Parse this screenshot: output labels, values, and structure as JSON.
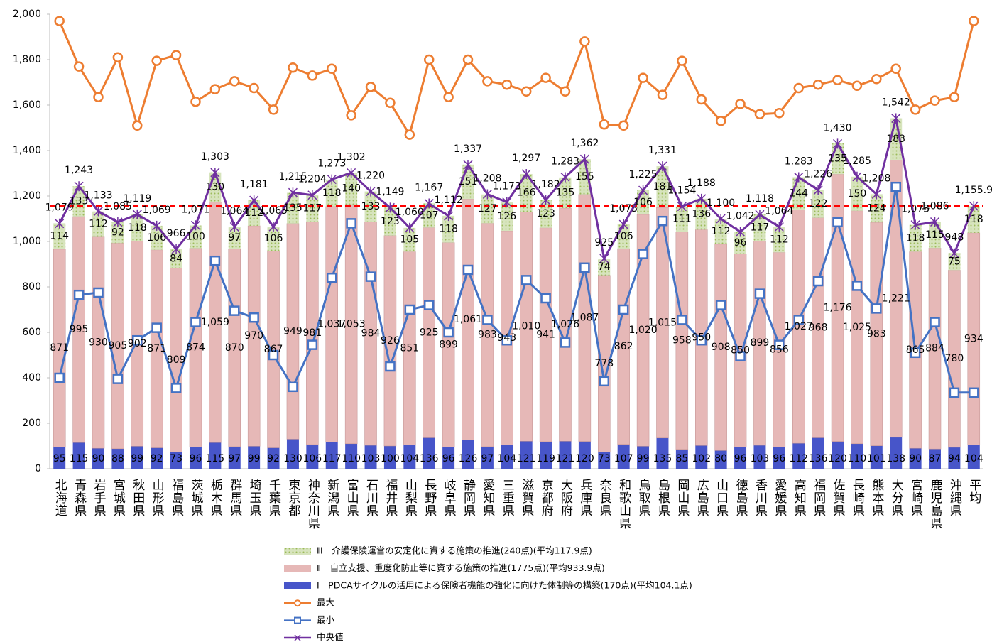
{
  "chart_data": {
    "type": "bar",
    "stacked": true,
    "categories": [
      "北海道",
      "青森県",
      "岩手県",
      "宮城県",
      "秋田県",
      "山形県",
      "福島県",
      "茨城県",
      "栃木県",
      "群馬県",
      "埼玉県",
      "千葉県",
      "東京都",
      "神奈川県",
      "新潟県",
      "富山県",
      "石川県",
      "福井県",
      "山梨県",
      "長野県",
      "岐阜県",
      "静岡県",
      "愛知県",
      "三重県",
      "滋賀県",
      "京都府",
      "大阪府",
      "兵庫県",
      "奈良県",
      "和歌山県",
      "鳥取県",
      "島根県",
      "岡山県",
      "広島県",
      "山口県",
      "徳島県",
      "香川県",
      "愛媛県",
      "高知県",
      "福岡県",
      "佐賀県",
      "長崎県",
      "熊本県",
      "大分県",
      "宮崎県",
      "鹿児島県",
      "沖縄県",
      "平均"
    ],
    "series": [
      {
        "name": "Ⅰ　PDCAサイクルの活用による保険者機能の強化に向けた体制等の構築(170点)(平均104.1点)",
        "type": "bar",
        "color": "#4755c9",
        "values": [
          95,
          115,
          90,
          88,
          99,
          92,
          73,
          96,
          115,
          97,
          99,
          92,
          130,
          106,
          117,
          110,
          103,
          100,
          104,
          136,
          96,
          126,
          97,
          104,
          121,
          119,
          121,
          120,
          73,
          107,
          99,
          135,
          85,
          102,
          80,
          96,
          103,
          96,
          112,
          136,
          120,
          110,
          101,
          138,
          90,
          87,
          94,
          104
        ]
      },
      {
        "name": "Ⅱ　自立支援、重度化防止等に資する施策の推進(1775点)(平均933.9点)",
        "type": "bar",
        "color": "#e6b8b7",
        "values": [
          871,
          995,
          930,
          905,
          902,
          871,
          809,
          874,
          1059,
          870,
          970,
          867,
          949,
          981,
          1037,
          1053,
          984,
          926,
          851,
          925,
          899,
          1061,
          983,
          943,
          1010,
          941,
          1026,
          1087,
          778,
          862,
          1020,
          1015,
          958,
          950,
          908,
          850,
          899,
          856,
          1027,
          968,
          1176,
          1025,
          983,
          1221,
          865,
          884,
          780,
          934
        ],
        "value_labels": [
          "871",
          "995",
          "930",
          "905",
          "902",
          "871",
          "809",
          "874",
          "1,059",
          "870",
          "970",
          "867",
          "949",
          "981",
          "1,037",
          "1,053",
          "984",
          "926",
          "851",
          "925",
          "899",
          "1,061",
          "983",
          "943",
          "1,010",
          "941",
          "1,026",
          "1,087",
          "778",
          "862",
          "1,020",
          "1,015",
          "958",
          "950",
          "908",
          "850",
          "899",
          "856",
          "1,027",
          "968",
          "1,176",
          "1,025",
          "983",
          "1,221",
          "865",
          "884",
          "780",
          "934"
        ]
      },
      {
        "name": "Ⅲ　介護保険運営の安定化に資する施策の推進(240点)(平均117.9点)",
        "type": "bar",
        "color": "#d7e4bd",
        "pattern": "dots",
        "values": [
          114,
          133,
          112,
          92,
          118,
          106,
          84,
          100,
          130,
          97,
          112,
          106,
          135,
          117,
          118,
          140,
          133,
          123,
          105,
          107,
          118,
          151,
          127,
          126,
          166,
          123,
          135,
          155,
          74,
          106,
          106,
          181,
          111,
          136,
          112,
          96,
          117,
          112,
          144,
          122,
          135,
          150,
          124,
          183,
          118,
          115,
          75,
          118
        ]
      },
      {
        "name": "最大",
        "type": "line",
        "color": "#ed7d31",
        "marker": "circle",
        "values": [
          1970,
          1770,
          1635,
          1810,
          1510,
          1795,
          1820,
          1615,
          1670,
          1705,
          1675,
          1580,
          1765,
          1730,
          1760,
          1555,
          1680,
          1610,
          1470,
          1800,
          1635,
          1800,
          1705,
          1690,
          1660,
          1720,
          1660,
          1880,
          1515,
          1510,
          1720,
          1645,
          1795,
          1625,
          1530,
          1605,
          1560,
          1565,
          1675,
          1690,
          1710,
          1685,
          1715,
          1760,
          1580,
          1620,
          1635,
          1970
        ]
      },
      {
        "name": "最小",
        "type": "line",
        "color": "#4472c4",
        "marker": "square",
        "values": [
          400,
          765,
          775,
          395,
          565,
          620,
          355,
          645,
          915,
          695,
          665,
          500,
          360,
          545,
          840,
          1080,
          845,
          450,
          700,
          720,
          600,
          875,
          655,
          565,
          830,
          750,
          555,
          885,
          385,
          700,
          945,
          1090,
          655,
          565,
          720,
          495,
          770,
          545,
          655,
          825,
          1085,
          805,
          705,
          1240,
          510,
          645,
          335,
          335
        ]
      },
      {
        "name": "中央値",
        "type": "line",
        "color": "#7030a0",
        "marker": "x",
        "values": [
          1079,
          1243,
          1133,
          1085,
          1119,
          1069,
          966,
          1071,
          1303,
          1064,
          1181,
          1065,
          1215,
          1204,
          1273,
          1302,
          1220,
          1149,
          1060,
          1167,
          1112,
          1337,
          1208,
          1173,
          1297,
          1182,
          1283,
          1362,
          925,
          1075,
          1225,
          1331,
          1154,
          1188,
          1100,
          1042,
          1118,
          1064,
          1283,
          1226,
          1430,
          1285,
          1208,
          1542,
          1073,
          1086,
          948,
          1155.9
        ],
        "value_labels": [
          "1,079",
          "1,243",
          "1,133",
          "1,085",
          "1,119",
          "1,069",
          "966",
          "1,071",
          "1,303",
          "1,064",
          "1,181",
          "1,065",
          "1,215",
          "1,204",
          "1,273",
          "1,302",
          "1,220",
          "1,149",
          "1,060",
          "1,167",
          "1,112",
          "1,337",
          "1,208",
          "1,173",
          "1,297",
          "1,182",
          "1,283",
          "1,362",
          "925",
          "1,075",
          "1,225",
          "1,331",
          "1,154",
          "1,188",
          "1,100",
          "1,042",
          "1,118",
          "1,064",
          "1,283",
          "1,226",
          "1,430",
          "1,285",
          "1,208",
          "1,542",
          "1,073",
          "1,086",
          "948",
          "1,155.9"
        ]
      }
    ],
    "reference_line": {
      "value": 1155.9,
      "color": "#ff0000",
      "dashed": true
    },
    "ylim": [
      0,
      2000
    ],
    "yticks": [
      0,
      200,
      400,
      600,
      800,
      {
        "value": 1000,
        "label": "1,000"
      },
      {
        "value": 1200,
        "label": "1,200"
      },
      {
        "value": 1400,
        "label": "1,400"
      },
      {
        "value": 1600,
        "label": "1,600"
      },
      {
        "value": 1800,
        "label": "1,800"
      },
      {
        "value": 2000,
        "label": "2,000"
      }
    ],
    "grid": false
  }
}
